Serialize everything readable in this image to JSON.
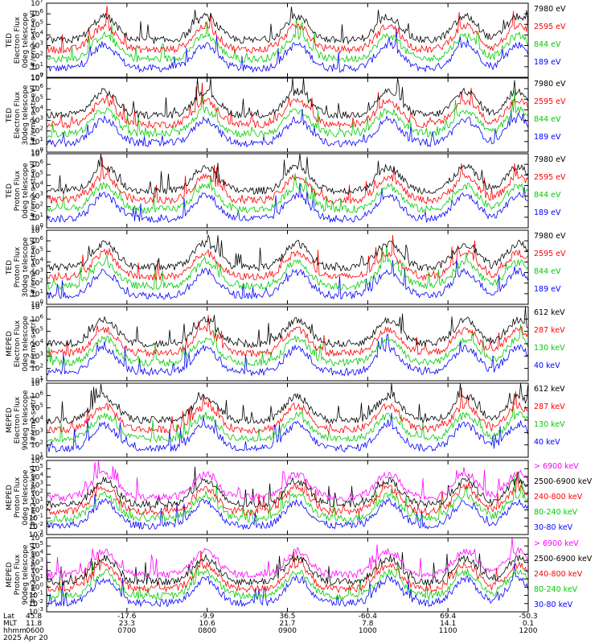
{
  "figure": {
    "footer": {
      "row_labels": [
        "Lat",
        "MLT",
        "hhmm",
        "2025 Apr 20"
      ],
      "lat": [
        "45.8",
        "-17.6",
        "-9.9",
        "36.5",
        "-60.4",
        "69.4",
        "-50.3"
      ],
      "mlt": [
        "11.8",
        "23.3",
        "10.6",
        "21.7",
        "7.8",
        "14.1",
        "0.1"
      ],
      "hhmm": [
        "0600",
        "0700",
        "0800",
        "0900",
        "1000",
        "1100",
        "1200"
      ]
    }
  },
  "chart_data": [
    {
      "type": "line",
      "ylabel": [
        "TED",
        "Electron Flux",
        "0deg telescope",
        "[#/cm2-s-str-eV]"
      ],
      "ylim_exp": [
        0,
        7
      ],
      "log_y": true,
      "xlim": [
        "0600",
        "1200"
      ],
      "series": [
        {
          "name": "7980 eV",
          "color": "#000000"
        },
        {
          "name": "2595 eV",
          "color": "#ff0000"
        },
        {
          "name": "844 eV",
          "color": "#00cc00"
        },
        {
          "name": "189 eV",
          "color": "#0000ff"
        }
      ]
    },
    {
      "type": "line",
      "ylabel": [
        "TED",
        "Electron Flux",
        "30deg telescope",
        "[#/cm2-s-str-eV]"
      ],
      "ylim_exp": [
        0,
        7
      ],
      "log_y": true,
      "xlim": [
        "0600",
        "1200"
      ],
      "series": [
        {
          "name": "7980 eV",
          "color": "#000000"
        },
        {
          "name": "2595 eV",
          "color": "#ff0000"
        },
        {
          "name": "844 eV",
          "color": "#00cc00"
        },
        {
          "name": "189 eV",
          "color": "#0000ff"
        }
      ]
    },
    {
      "type": "line",
      "ylabel": [
        "TED",
        "Proton Flux",
        "0deg telescope",
        "[#/cm2-s-str-eV]"
      ],
      "ylim_exp": [
        0,
        7
      ],
      "log_y": true,
      "xlim": [
        "0600",
        "1200"
      ],
      "series": [
        {
          "name": "7980 eV",
          "color": "#000000"
        },
        {
          "name": "2595 eV",
          "color": "#ff0000"
        },
        {
          "name": "844 eV",
          "color": "#00cc00"
        },
        {
          "name": "189 eV",
          "color": "#0000ff"
        }
      ]
    },
    {
      "type": "line",
      "ylabel": [
        "TED",
        "Proton Flux",
        "30deg telescope",
        "[#/cm2-s-str-eV]"
      ],
      "ylim_exp": [
        0,
        7
      ],
      "log_y": true,
      "xlim": [
        "0600",
        "1200"
      ],
      "series": [
        {
          "name": "7980 eV",
          "color": "#000000"
        },
        {
          "name": "2595 eV",
          "color": "#ff0000"
        },
        {
          "name": "844 eV",
          "color": "#00cc00"
        },
        {
          "name": "189 eV",
          "color": "#0000ff"
        }
      ]
    },
    {
      "type": "line",
      "ylabel": [
        "MEPED",
        "Electron Flux",
        "0deg telescope",
        "[#/cm2-s-str]"
      ],
      "ylim_exp": [
        1,
        7
      ],
      "log_y": true,
      "xlim": [
        "0600",
        "1200"
      ],
      "series": [
        {
          "name": "612 keV",
          "color": "#000000"
        },
        {
          "name": "287 keV",
          "color": "#ff0000"
        },
        {
          "name": "130 keV",
          "color": "#00cc00"
        },
        {
          "name": "40 keV",
          "color": "#0000ff"
        }
      ]
    },
    {
      "type": "line",
      "ylabel": [
        "MEPED",
        "Electron Flux",
        "90deg telescope",
        "[#/cm2-s-str]"
      ],
      "ylim_exp": [
        1,
        7
      ],
      "log_y": true,
      "xlim": [
        "0600",
        "1200"
      ],
      "series": [
        {
          "name": "612 keV",
          "color": "#000000"
        },
        {
          "name": "287 keV",
          "color": "#ff0000"
        },
        {
          "name": "130 keV",
          "color": "#00cc00"
        },
        {
          "name": "40 keV",
          "color": "#0000ff"
        }
      ]
    },
    {
      "type": "line",
      "ylabel": [
        "MEPED",
        "Proton Flux",
        "0deg telescope",
        "[#/cm2-s-str-keV]"
      ],
      "ylim_exp": [
        -3,
        6
      ],
      "log_y": true,
      "xlim": [
        "0600",
        "1200"
      ],
      "series": [
        {
          "name": "> 6900 keV",
          "color": "#ff00ff"
        },
        {
          "name": "2500-6900 keV",
          "color": "#000000"
        },
        {
          "name": "240-800 keV",
          "color": "#ff0000"
        },
        {
          "name": "80-240 keV",
          "color": "#00cc00"
        },
        {
          "name": "30-80 keV",
          "color": "#0000ff"
        }
      ]
    },
    {
      "type": "line",
      "ylabel": [
        "MEPED",
        "Proton Flux",
        "90deg telescope",
        "[#/cm2-s-str-keV]"
      ],
      "ylim_exp": [
        -3,
        6
      ],
      "log_y": true,
      "xlim": [
        "0600",
        "1200"
      ],
      "series": [
        {
          "name": "> 6900 keV",
          "color": "#ff00ff"
        },
        {
          "name": "2500-6900 keV",
          "color": "#000000"
        },
        {
          "name": "240-800 keV",
          "color": "#ff0000"
        },
        {
          "name": "80-240 keV",
          "color": "#00cc00"
        },
        {
          "name": "30-80 keV",
          "color": "#0000ff"
        }
      ]
    }
  ]
}
